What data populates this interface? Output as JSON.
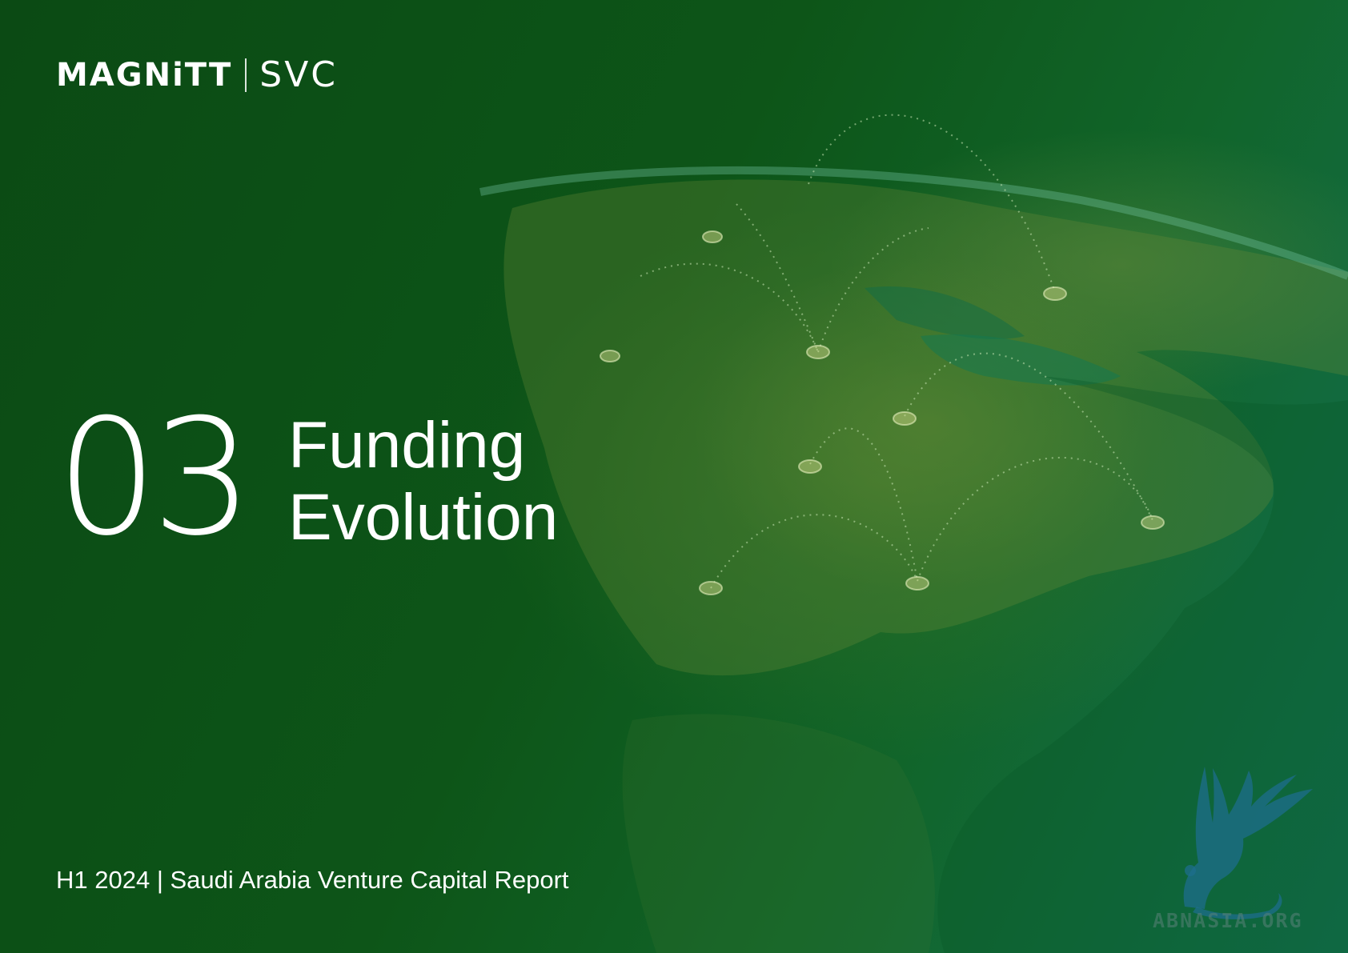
{
  "header": {
    "logo_primary": "MAGNiTT",
    "logo_secondary": "SVC"
  },
  "section": {
    "number": "03",
    "title_line1": "Funding",
    "title_line2": "Evolution"
  },
  "footer": {
    "report_label": "H1 2024 | Saudi Arabia Venture Capital Report"
  },
  "watermark": {
    "text": "ABNASIA.ORG",
    "icon": "griffin-icon"
  },
  "colors": {
    "background": "#0c4d16",
    "text": "#ffffff",
    "watermark": "#1f6f8a"
  }
}
